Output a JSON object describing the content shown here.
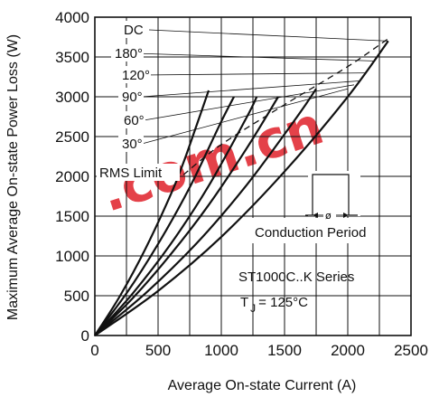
{
  "chart_data": {
    "type": "line",
    "title": "",
    "xlabel": "Average On-state Current (A)",
    "ylabel": "Maximum Average On-state Power Loss (W)",
    "xlim": [
      0,
      2500
    ],
    "ylim": [
      0,
      4000
    ],
    "xticks": [
      0,
      500,
      1000,
      1500,
      2000,
      2500
    ],
    "yticks": [
      0,
      500,
      1000,
      1500,
      2000,
      2500,
      3000,
      3500,
      4000
    ],
    "grid": true,
    "series": [
      {
        "name": "30°",
        "x": [
          0,
          200,
          400,
          600,
          700,
          800,
          900
        ],
        "y": [
          0,
          500,
          1090,
          1770,
          2170,
          2620,
          3080
        ]
      },
      {
        "name": "60°",
        "x": [
          0,
          250,
          500,
          750,
          1000,
          1100
        ],
        "y": [
          0,
          530,
          1150,
          1860,
          2690,
          3000
        ]
      },
      {
        "name": "90°",
        "x": [
          0,
          300,
          600,
          900,
          1200,
          1280
        ],
        "y": [
          0,
          530,
          1150,
          1880,
          2740,
          3000
        ]
      },
      {
        "name": "120°",
        "x": [
          0,
          300,
          600,
          900,
          1200,
          1450
        ],
        "y": [
          0,
          470,
          1020,
          1640,
          2350,
          3000
        ]
      },
      {
        "name": "180°",
        "x": [
          0,
          400,
          800,
          1200,
          1600,
          1750
        ],
        "y": [
          0,
          530,
          1150,
          1890,
          2750,
          3100
        ]
      },
      {
        "name": "DC",
        "x": [
          0,
          500,
          1000,
          1500,
          2000,
          2320
        ],
        "y": [
          0,
          560,
          1240,
          2060,
          3000,
          3700
        ]
      },
      {
        "name": "RMS Limit",
        "x": [
          700,
          1000,
          1500,
          2000,
          2320
        ],
        "y": [
          2020,
          2400,
          2900,
          3380,
          3730
        ]
      }
    ],
    "annotations": {
      "curve_labels": [
        "DC",
        "180°",
        "120°",
        "90°",
        "60°",
        "30°"
      ],
      "rms_label": "RMS Limit",
      "conduction_label": "Conduction Period",
      "conduction_symbol": "ø",
      "series_name": "ST1000C..K Series",
      "tj_main": "T",
      "tj_sub": "J",
      "tj_rest": "= 125°C"
    },
    "watermark": ".com.cn",
    "colors": {
      "line": "#111111",
      "grid": "#111111",
      "watermark": "#e0202a"
    }
  }
}
